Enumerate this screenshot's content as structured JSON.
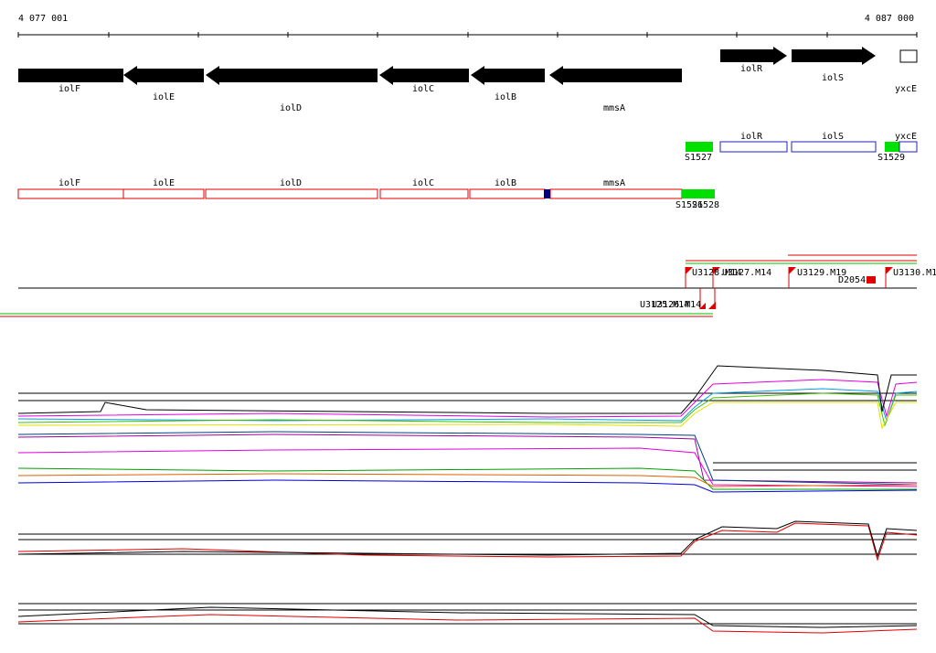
{
  "ruler": {
    "start": "4 077 001",
    "end": "4 087 000"
  },
  "genes": [
    "iolF",
    "iolE",
    "iolD",
    "iolC",
    "iolB",
    "mmsA",
    "iolR",
    "iolS",
    "yxcE"
  ],
  "transcripts_upper": {
    "boxes": [
      "iolR",
      "iolS",
      "yxcE"
    ],
    "segments": [
      "S1527",
      "S1529"
    ]
  },
  "transcripts_lower": {
    "boxes": [
      "iolF",
      "iolE",
      "iolD",
      "iolC",
      "iolB",
      "mmsA"
    ],
    "segments": [
      "S1526",
      "S1528"
    ]
  },
  "probes_upper": [
    "U3128.M14",
    "U3127.M14",
    "U3129.M19",
    "U3130.M1",
    "D2054"
  ],
  "probes_lower": [
    "U3125.M14",
    "U3126.M14"
  ]
}
